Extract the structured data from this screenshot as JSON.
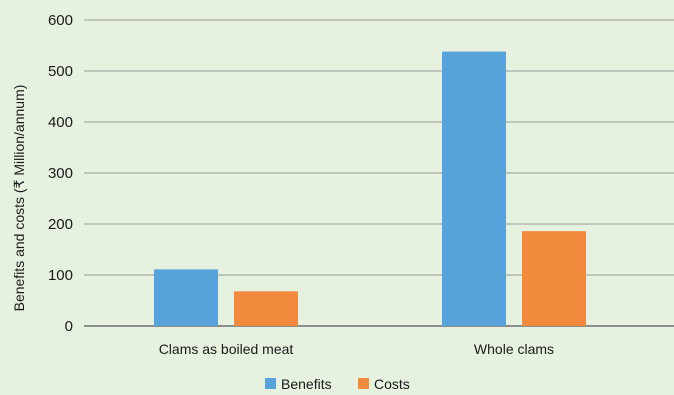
{
  "chart_data": {
    "type": "bar",
    "title": "",
    "xlabel": "",
    "ylabel": "Benefits and costs (₹ Million/annum)",
    "categories": [
      "Clams as boiled meat",
      "Whole clams"
    ],
    "series": [
      {
        "name": "Benefits",
        "values": [
          111,
          538
        ],
        "color": "#58a2dc"
      },
      {
        "name": "Costs",
        "values": [
          68,
          186
        ],
        "color": "#f28a3e"
      }
    ],
    "ylim": [
      0,
      600
    ],
    "yticks": [
      0,
      100,
      200,
      300,
      400,
      500,
      600
    ],
    "grid": true,
    "legend_position": "bottom",
    "background_color": "#e7f1e0",
    "grid_color": "#9a9a9a"
  }
}
